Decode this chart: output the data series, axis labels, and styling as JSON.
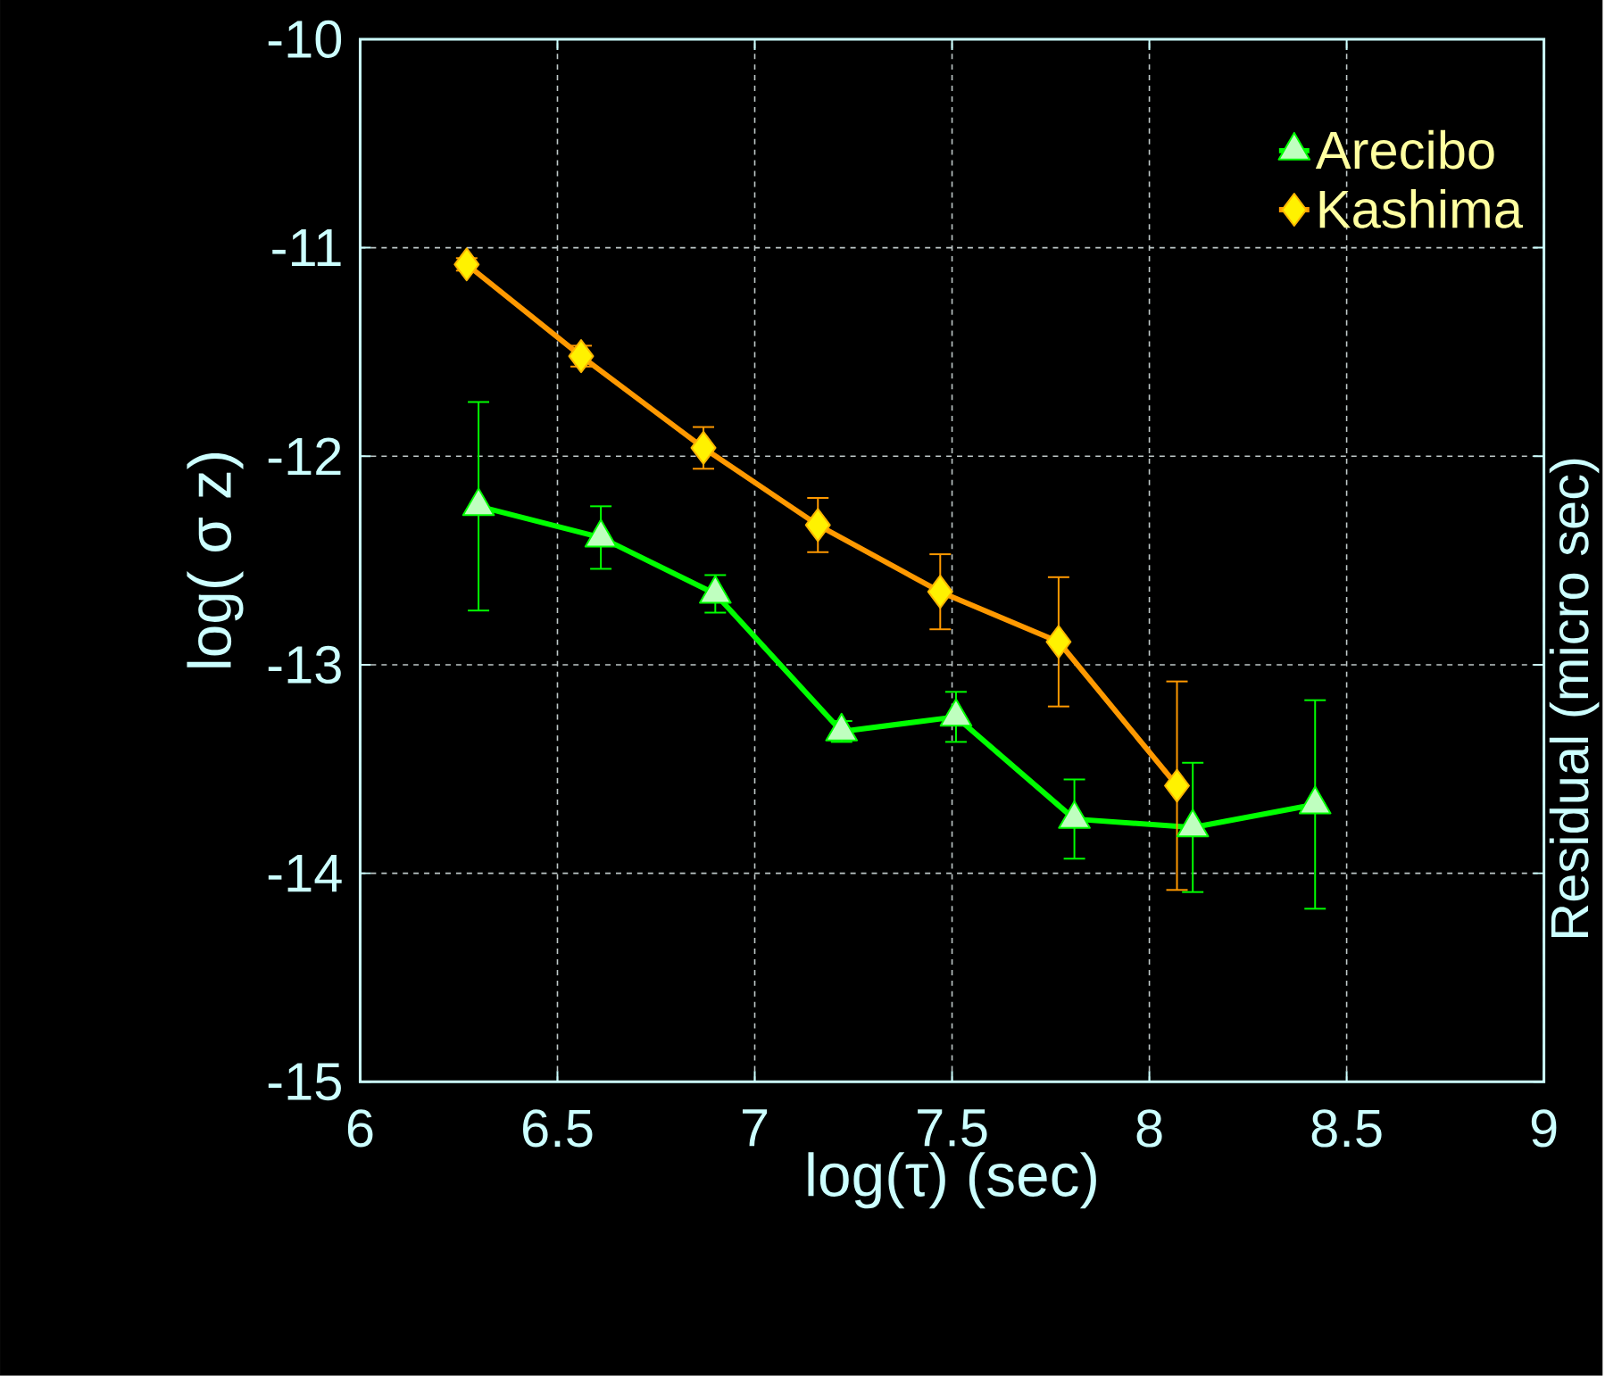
{
  "chart_data": {
    "type": "line",
    "xlabel": "log(τ)  (sec)",
    "ylabel": "log( σ z)",
    "y2label": "Residual (micro sec)",
    "xlim": [
      6,
      9
    ],
    "xticks": [
      6,
      6.5,
      7,
      7.5,
      8,
      8.5,
      9
    ],
    "ylim": [
      -15,
      -10
    ],
    "yticks": [
      -15,
      -14,
      -13,
      -12,
      -11,
      -10
    ],
    "grid": true,
    "legend": "top right",
    "line_style": "solid",
    "series": [
      {
        "name": "Arecibo",
        "color": "#00ff00",
        "marker": "triangle",
        "x": [
          6.3,
          6.61,
          6.9,
          7.22,
          7.51,
          7.81,
          8.11,
          8.42
        ],
        "values": [
          -12.24,
          -12.39,
          -12.66,
          -13.32,
          -13.25,
          -13.74,
          -13.78,
          -13.67
        ],
        "errors": [
          0.5,
          0.15,
          0.09,
          0.05,
          0.12,
          0.19,
          0.31,
          0.5
        ]
      },
      {
        "name": "Kashima",
        "color": "#ff9900",
        "marker": "diamond",
        "x": [
          6.27,
          6.56,
          6.87,
          7.16,
          7.47,
          7.77,
          8.07
        ],
        "values": [
          -11.08,
          -11.52,
          -11.96,
          -12.33,
          -12.65,
          -12.89,
          -13.58
        ],
        "errors": [
          0.03,
          0.05,
          0.1,
          0.13,
          0.18,
          0.31,
          0.5
        ]
      }
    ]
  }
}
